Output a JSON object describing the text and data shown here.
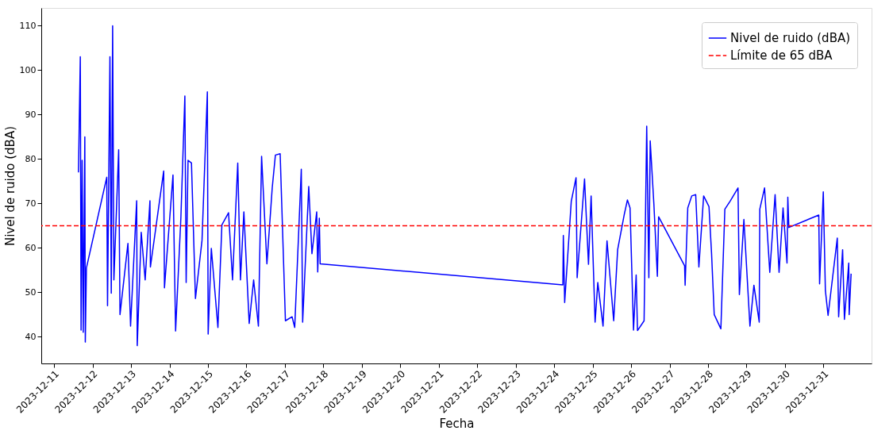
{
  "chart_data": {
    "type": "line",
    "xlabel": "Fecha",
    "ylabel": "Nivel de ruido (dBA)",
    "x": [
      "2023-12-11T15:12",
      "2023-12-11T16:21",
      "2023-12-11T16:50",
      "2023-12-11T17:29",
      "2023-12-11T18:11",
      "2023-12-11T19:10",
      "2023-12-11T19:28",
      "2023-12-11T20:10",
      "2023-12-12T08:51",
      "2023-12-12T09:20",
      "2023-12-12T10:50",
      "2023-12-12T11:40",
      "2023-12-12T12:31",
      "2023-12-12T13:18",
      "2023-12-12T16:17",
      "2023-12-12T17:07",
      "2023-12-12T22:04",
      "2023-12-12T23:42",
      "2023-12-13T03:31",
      "2023-12-13T03:52",
      "2023-12-13T06:21",
      "2023-12-13T08:49",
      "2023-12-13T11:48",
      "2023-12-13T12:05",
      "2023-12-13T20:22",
      "2023-12-13T20:51",
      "2023-12-14T02:10",
      "2023-12-14T03:48",
      "2023-12-14T07:07",
      "2023-12-14T09:35",
      "2023-12-14T10:23",
      "2023-12-14T11:34",
      "2023-12-14T13:42",
      "2023-12-14T16:11",
      "2023-12-14T20:17",
      "2023-12-14T23:37",
      "2023-12-15T00:07",
      "2023-12-15T02:05",
      "2023-12-15T06:12",
      "2023-12-15T08:41",
      "2023-12-15T12:50",
      "2023-12-15T15:19",
      "2023-12-15T18:35",
      "2023-12-15T20:16",
      "2023-12-15T22:24",
      "2023-12-16T01:43",
      "2023-12-16T04:29",
      "2023-12-16T07:28",
      "2023-12-16T09:27",
      "2023-12-16T12:46",
      "2023-12-16T16:05",
      "2023-12-16T18:04",
      "2023-12-16T21:02",
      "2023-12-17T00:19",
      "2023-12-17T04:28",
      "2023-12-17T06:07",
      "2023-12-17T10:13",
      "2023-12-17T11:04",
      "2023-12-17T14:52",
      "2023-12-17T16:52",
      "2023-12-17T19:50",
      "2023-12-17T20:28",
      "2023-12-17T21:28",
      "2023-12-17T22:00",
      "2023-12-24T05:24",
      "2023-12-24T05:42",
      "2023-12-24T06:32",
      "2023-12-24T10:39",
      "2023-12-24T13:38",
      "2023-12-24T14:19",
      "2023-12-24T18:56",
      "2023-12-24T21:24",
      "2023-12-24T23:02",
      "2023-12-25T01:31",
      "2023-12-25T03:12",
      "2023-12-25T06:28",
      "2023-12-25T08:57",
      "2023-12-25T13:07",
      "2023-12-25T15:35",
      "2023-12-25T19:42",
      "2023-12-25T21:41",
      "2023-12-25T23:19",
      "2023-12-26T01:29",
      "2023-12-26T03:08",
      "2023-12-26T03:58",
      "2023-12-26T08:05",
      "2023-12-26T09:43",
      "2023-12-26T11:03",
      "2023-12-26T11:54",
      "2023-12-26T14:11",
      "2023-12-26T16:22",
      "2023-12-26T17:09",
      "2023-12-27T09:21",
      "2023-12-27T09:41",
      "2023-12-27T11:20",
      "2023-12-27T13:49",
      "2023-12-27T16:17",
      "2023-12-27T18:16",
      "2023-12-27T21:14",
      "2023-12-28T00:34",
      "2023-12-28T02:11",
      "2023-12-28T03:50",
      "2023-12-28T07:59",
      "2023-12-28T10:28",
      "2023-12-28T13:44",
      "2023-12-28T18:41",
      "2023-12-28T19:32",
      "2023-12-28T22:21",
      "2023-12-29T02:07",
      "2023-12-29T04:36",
      "2023-12-29T07:55",
      "2023-12-29T08:16",
      "2023-12-29T11:14",
      "2023-12-29T14:30",
      "2023-12-29T17:49",
      "2023-12-29T20:18",
      "2023-12-29T22:47",
      "2023-12-30T01:15",
      "2023-12-30T01:45",
      "2023-12-30T02:23",
      "2023-12-30T21:04",
      "2023-12-30T21:34",
      "2023-12-30T23:53",
      "2023-12-31T01:11",
      "2023-12-31T02:52",
      "2023-12-31T08:37",
      "2023-12-31T09:27",
      "2023-12-31T11:56",
      "2023-12-31T13:04",
      "2023-12-31T15:45",
      "2023-12-31T16:02",
      "2023-12-31T17:14"
    ],
    "series": [
      {
        "name": "Nivel de ruido (dBA)",
        "color": "#0000ff",
        "values": [
          77,
          103,
          41.5,
          79.7,
          41,
          85,
          38.8,
          55.5,
          75.9,
          47,
          103,
          49.8,
          110,
          52.8,
          82.1,
          45,
          61,
          42.4,
          70.6,
          38,
          63.5,
          52.8,
          70.6,
          55.7,
          77.3,
          51,
          76.4,
          41.3,
          67,
          94.2,
          52.2,
          79.7,
          79.1,
          48.6,
          61.7,
          95.1,
          40.6,
          59.9,
          42.1,
          65.2,
          67.9,
          52.8,
          79.1,
          52.8,
          68.1,
          43,
          52.8,
          42.4,
          80.6,
          56.4,
          73.5,
          80.9,
          81.2,
          43.6,
          44.5,
          42.1,
          77.7,
          43.3,
          73.8,
          58.7,
          68.1,
          54.6,
          66.7,
          56.4,
          51.7,
          62.8,
          47.7,
          70.5,
          75.8,
          53.3,
          75.5,
          56.3,
          71.7,
          43.3,
          52.2,
          42.4,
          61.6,
          43.6,
          59.6,
          67.5,
          70.8,
          69,
          41.5,
          53.9,
          41.4,
          43.6,
          87.4,
          53.3,
          84.1,
          69.9,
          53.6,
          67,
          56,
          51.6,
          69,
          71.7,
          72,
          55.7,
          71.7,
          69.3,
          58.7,
          45,
          41.8,
          68.7,
          70.5,
          73.5,
          49.5,
          66.4,
          42.4,
          51.6,
          43.3,
          68.7,
          73.5,
          54.5,
          72,
          54.5,
          69,
          56.6,
          71.4,
          64.6,
          67.4,
          51.9,
          72.6,
          50.4,
          44.8,
          62.2,
          44.5,
          59.6,
          43.9,
          56.6,
          45,
          54.2
        ]
      }
    ],
    "ref_lines": [
      {
        "axis": "y",
        "value": 65,
        "label": "Límite de 65 dBA",
        "color": "#ff0000",
        "line_style": "dashed"
      }
    ],
    "xlim": [
      "2023-12-10T16:00",
      "2024-01-01T06:00"
    ],
    "xticks": [
      "2023-12-11",
      "2023-12-12",
      "2023-12-13",
      "2023-12-14",
      "2023-12-15",
      "2023-12-16",
      "2023-12-17",
      "2023-12-18",
      "2023-12-19",
      "2023-12-20",
      "2023-12-21",
      "2023-12-22",
      "2023-12-23",
      "2023-12-24",
      "2023-12-25",
      "2023-12-26",
      "2023-12-27",
      "2023-12-28",
      "2023-12-29",
      "2023-12-30",
      "2023-12-31"
    ],
    "ylim": [
      34,
      114
    ],
    "yticks": [
      40,
      50,
      60,
      70,
      80,
      90,
      100,
      110
    ],
    "grid": false,
    "legend": "top right",
    "marker": "none",
    "line_style": "solid"
  }
}
